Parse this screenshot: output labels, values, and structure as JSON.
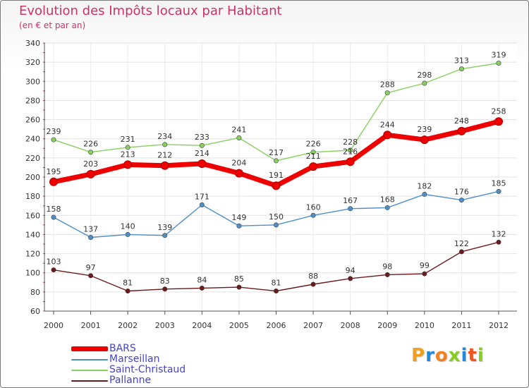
{
  "chart_data": {
    "type": "line",
    "title": "Evolution des Impôts locaux par Habitant",
    "subtitle": "(en € et par an)",
    "xlabel": "",
    "ylabel": "",
    "ylim": [
      60,
      340
    ],
    "yticks": [
      60,
      80,
      100,
      120,
      140,
      160,
      180,
      200,
      220,
      240,
      260,
      280,
      300,
      320,
      340
    ],
    "grid": true,
    "categories": [
      "2000",
      "2001",
      "2002",
      "2003",
      "2004",
      "2005",
      "2006",
      "2007",
      "2008",
      "2009",
      "2010",
      "2011",
      "2012"
    ],
    "series": [
      {
        "name": "Pallanne",
        "color": "#6b1a1a",
        "values": [
          103,
          97,
          81,
          83,
          84,
          85,
          81,
          88,
          94,
          98,
          99,
          122,
          132
        ]
      },
      {
        "name": "Marseillan",
        "color": "#4f8fc8",
        "values": [
          158,
          137,
          140,
          139,
          171,
          149,
          150,
          160,
          167,
          168,
          182,
          176,
          185
        ]
      },
      {
        "name": "Saint-Christaud",
        "color": "#88d060",
        "values": [
          239,
          226,
          231,
          234,
          233,
          241,
          217,
          226,
          228,
          288,
          298,
          313,
          319
        ]
      },
      {
        "name": "BARS",
        "color": "#ee0000",
        "values": [
          195,
          203,
          213,
          212,
          214,
          204,
          191,
          211,
          216,
          244,
          239,
          248,
          258
        ]
      }
    ],
    "legend_order": [
      "BARS",
      "Marseillan",
      "Saint-Christaud",
      "Pallanne"
    ],
    "legend_position": "bottom-left"
  },
  "logo": {
    "letters": [
      "P",
      "r",
      "o",
      "x",
      "i",
      "t",
      "i"
    ],
    "colors": [
      "#f0a020",
      "#2288dd",
      "#f08020",
      "#88cc22",
      "#2288dd",
      "#ee5522",
      "#88cc22"
    ]
  }
}
